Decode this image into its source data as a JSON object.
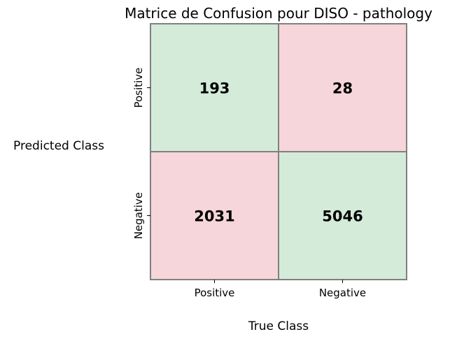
{
  "chart_data": {
    "type": "heatmap",
    "title": "Matrice de Confusion pour DISO - pathology",
    "xlabel": "True Class",
    "ylabel": "Predicted Class",
    "x_categories": [
      "Positive",
      "Negative"
    ],
    "y_categories": [
      "Positive",
      "Negative"
    ],
    "values": [
      [
        193,
        28
      ],
      [
        2031,
        5046
      ]
    ],
    "colors": {
      "correct": "#d4ebd9",
      "incorrect": "#f6d6da",
      "border": "#808080"
    }
  }
}
